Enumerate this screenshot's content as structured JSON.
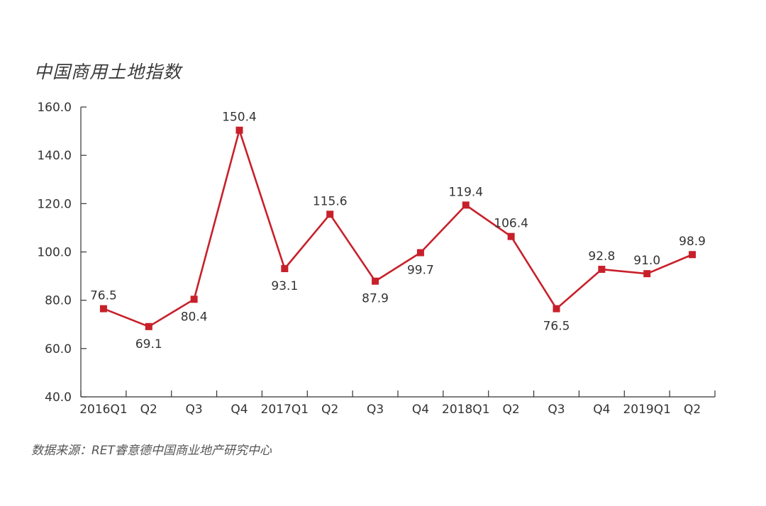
{
  "chart_data": {
    "type": "line",
    "title": "中国商用土地指数",
    "categories": [
      "2016Q1",
      "Q2",
      "Q3",
      "Q4",
      "2017Q1",
      "Q2",
      "Q3",
      "Q4",
      "2018Q1",
      "Q2",
      "Q3",
      "Q4",
      "2019Q1",
      "Q2"
    ],
    "series": [
      {
        "values": [
          76.5,
          69.1,
          80.4,
          150.4,
          93.1,
          115.6,
          87.9,
          99.7,
          119.4,
          106.4,
          76.5,
          92.8,
          91.0,
          98.9
        ]
      }
    ],
    "data_labels": [
      "76.5",
      "69.1",
      "80.4",
      "150.4",
      "93.1",
      "115.6",
      "87.9",
      "99.7",
      "119.4",
      "106.4",
      "76.5",
      "92.8",
      "91.0",
      "98.9"
    ],
    "label_placement": [
      "above",
      "below",
      "below",
      "above",
      "below",
      "above",
      "below",
      "below",
      "above",
      "above",
      "below",
      "above",
      "above",
      "above"
    ],
    "y_ticks": [
      "40.0",
      "60.0",
      "80.0",
      "100.0",
      "120.0",
      "140.0",
      "160.0"
    ],
    "ylim": [
      40,
      160
    ],
    "grid": false,
    "legend": "none",
    "line_color": "#c8202a"
  },
  "source": "数据来源：RET睿意德中国商业地产研究中心"
}
